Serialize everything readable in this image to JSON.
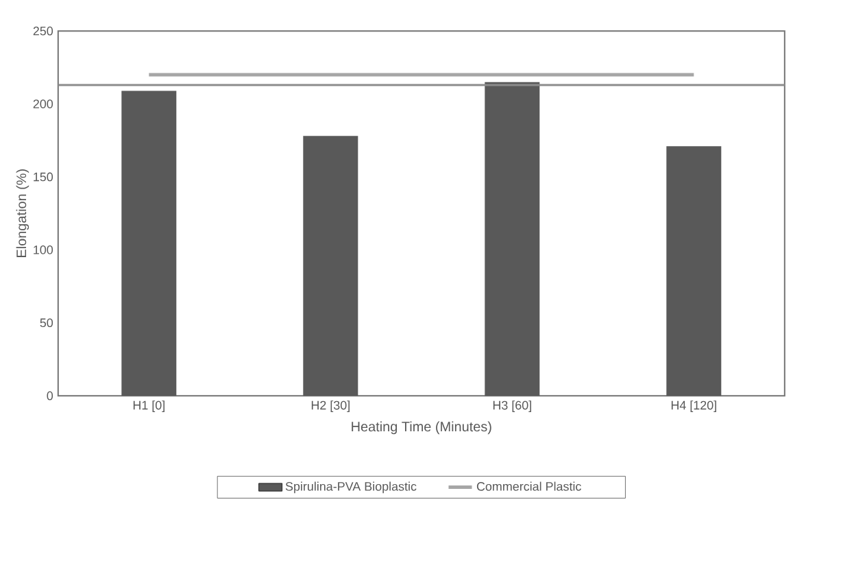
{
  "chart_data": {
    "type": "bar",
    "xlabel": "Heating Time (Minutes)",
    "ylabel": "Elongation (%)",
    "categories": [
      "H1 [0]",
      "H2 [30]",
      "H3 [60]",
      "H4 [120]"
    ],
    "series": [
      {
        "name": "Spirulina-PVA Bioplastic",
        "color": "#595959",
        "values": [
          209,
          178,
          215,
          171
        ]
      },
      {
        "name": "Commercial Plastic",
        "type": "line",
        "color": "#a6a6a6",
        "values": [
          220,
          220,
          220,
          220
        ]
      }
    ],
    "ylim": [
      0,
      250
    ],
    "yticks": [
      0,
      50,
      100,
      150,
      200,
      250
    ],
    "ref_lines": [
      {
        "axis": "y",
        "value": 213,
        "color": "#8c8c8c"
      }
    ],
    "grid": false,
    "legend": "bottom"
  }
}
